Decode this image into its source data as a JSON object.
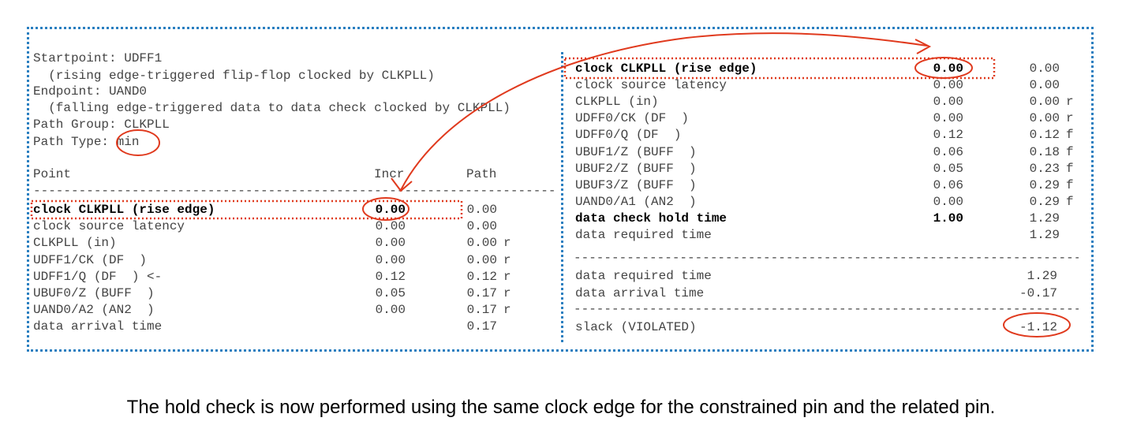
{
  "header": {
    "startpoint": "Startpoint: UDFF1",
    "startpoint_desc": "  (rising edge-triggered flip-flop clocked by CLKPLL)",
    "endpoint": "Endpoint: UAND0",
    "endpoint_desc": "  (falling edge-triggered data to data check clocked by CLKPLL)",
    "path_group": "Path Group: CLKPLL",
    "path_type_label": "Path Type: ",
    "path_type_value": "min"
  },
  "left_table": {
    "col_point": "Point",
    "col_incr": "Incr",
    "col_path": "Path",
    "rows": [
      {
        "point": "clock CLKPLL (rise edge)",
        "incr": "0.00",
        "path": "0.00",
        "flag": ""
      },
      {
        "point": "clock source latency",
        "incr": "0.00",
        "path": "0.00",
        "flag": ""
      },
      {
        "point": "CLKPLL (in)",
        "incr": "0.00",
        "path": "0.00",
        "flag": "r"
      },
      {
        "point": "UDFF1/CK (DF  )",
        "incr": "0.00",
        "path": "0.00",
        "flag": "r"
      },
      {
        "point": "UDFF1/Q (DF  ) <-",
        "incr": "0.12",
        "path": "0.12",
        "flag": "r"
      },
      {
        "point": "UBUF0/Z (BUFF  )",
        "incr": "0.05",
        "path": "0.17",
        "flag": "r"
      },
      {
        "point": "UAND0/A2 (AN2  )",
        "incr": "0.00",
        "path": "0.17",
        "flag": "r"
      },
      {
        "point": "data arrival time",
        "incr": "",
        "path": "0.17",
        "flag": ""
      }
    ]
  },
  "right_table": {
    "rows": [
      {
        "point": "clock CLKPLL (rise edge)",
        "incr": "0.00",
        "path": "0.00",
        "flag": ""
      },
      {
        "point": "clock source latency",
        "incr": "0.00",
        "path": "0.00",
        "flag": ""
      },
      {
        "point": "CLKPLL (in)",
        "incr": "0.00",
        "path": "0.00",
        "flag": "r"
      },
      {
        "point": "UDFF0/CK (DF  )",
        "incr": "0.00",
        "path": "0.00",
        "flag": "r"
      },
      {
        "point": "UDFF0/Q (DF  )",
        "incr": "0.12",
        "path": "0.12",
        "flag": "f"
      },
      {
        "point": "UBUF1/Z (BUFF  )",
        "incr": "0.06",
        "path": "0.18",
        "flag": "f"
      },
      {
        "point": "UBUF2/Z (BUFF  )",
        "incr": "0.05",
        "path": "0.23",
        "flag": "f"
      },
      {
        "point": "UBUF3/Z (BUFF  )",
        "incr": "0.06",
        "path": "0.29",
        "flag": "f"
      },
      {
        "point": "UAND0/A1 (AN2  )",
        "incr": "0.00",
        "path": "0.29",
        "flag": "f"
      },
      {
        "point": "data check hold time",
        "incr": "1.00",
        "path": "1.29",
        "flag": ""
      },
      {
        "point": "data required time",
        "incr": "",
        "path": "1.29",
        "flag": ""
      }
    ],
    "summary": [
      {
        "point": "data required time",
        "path": "1.29"
      },
      {
        "point": "data arrival time",
        "path": "-0.17"
      }
    ],
    "slack_label": "slack (VIOLATED)",
    "slack_value": "-1.12"
  },
  "caption": "The hold check is now performed using the same clock edge for the constrained pin and the related pin.",
  "colors": {
    "frame": "#2a7fc0",
    "annotation": "#e03a1e"
  }
}
